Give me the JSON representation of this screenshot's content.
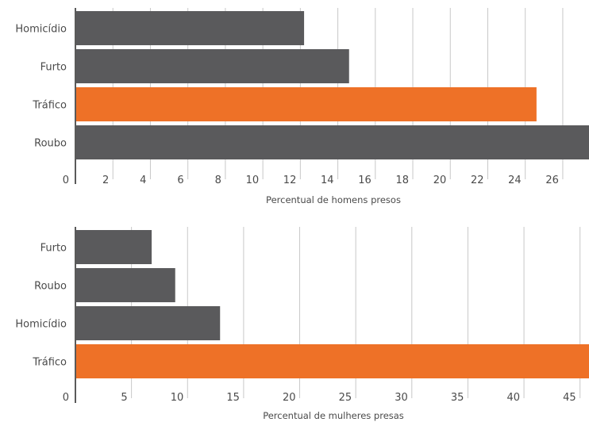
{
  "colors": {
    "bar": "#5a5a5c",
    "highlight": "#ee7127"
  },
  "chart_data": [
    {
      "type": "bar",
      "orientation": "horizontal",
      "categories": [
        "Homicídio",
        "Furto",
        "Tráfico",
        "Roubo"
      ],
      "values": [
        12.2,
        14.6,
        24.6,
        27.4
      ],
      "highlight": "Tráfico",
      "xlim": [
        0,
        27.4
      ],
      "ticks": [
        0,
        2,
        4,
        6,
        8,
        10,
        12,
        14,
        16,
        18,
        20,
        22,
        24,
        26
      ],
      "xlabel": "Percentual de homens presos",
      "grid": true
    },
    {
      "type": "bar",
      "orientation": "horizontal",
      "categories": [
        "Furto",
        "Roubo",
        "Homicídio",
        "Tráfico"
      ],
      "values": [
        6.8,
        8.9,
        12.9,
        45.8
      ],
      "highlight": "Tráfico",
      "xlim": [
        0,
        45.8
      ],
      "ticks": [
        0,
        5,
        10,
        15,
        20,
        25,
        30,
        35,
        40,
        45
      ],
      "xlabel": "Percentual de mulheres presas",
      "grid": true
    }
  ]
}
